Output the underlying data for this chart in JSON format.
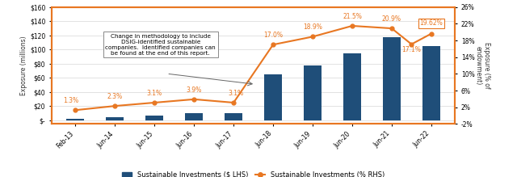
{
  "bar_categories": [
    "Feb-13",
    "Jun-14",
    "Jun-15",
    "Jun-16",
    "Jun-17",
    "Jun-18",
    "Jun-19",
    "Jun-20",
    "Jun-21",
    "Jun-22"
  ],
  "bar_x": [
    0,
    1,
    2,
    3,
    4,
    5,
    6,
    7,
    8,
    9
  ],
  "bar_values": [
    2,
    4,
    7,
    10,
    10,
    65,
    78,
    95,
    118,
    105
  ],
  "bar_color": "#1F4E79",
  "bar_width": 0.45,
  "line_x": [
    0,
    1,
    2,
    3,
    4,
    5,
    6,
    7,
    8,
    8.5,
    9
  ],
  "line_values": [
    1.3,
    2.3,
    3.1,
    3.9,
    3.1,
    17.0,
    18.9,
    21.5,
    20.9,
    17.1,
    19.62
  ],
  "line_color": "#E87722",
  "line_labels": [
    "1.3%",
    "2.3%",
    "3.1%",
    "3.9%",
    "3.1%",
    "17.0%",
    "18.9%",
    "21.5%",
    "20.9%",
    "17.1%",
    "19.62%"
  ],
  "ylim_left": [
    -5,
    160
  ],
  "ylim_right": [
    -2,
    26
  ],
  "yticks_left": [
    0,
    20,
    40,
    60,
    80,
    100,
    120,
    140,
    160
  ],
  "ytick_labels_left": [
    "$-",
    "$20",
    "$40",
    "$60",
    "$80",
    "$100",
    "$120",
    "$140",
    "$160"
  ],
  "yticks_right": [
    -2,
    2,
    6,
    10,
    14,
    18,
    22,
    26
  ],
  "ytick_labels_right": [
    "-2%",
    "2%",
    "6%",
    "10%",
    "14%",
    "18%",
    "22%",
    "26%"
  ],
  "ylabel_left": "Exposure (millions)",
  "ylabel_right": "Exposure (% of\nendowment)",
  "annotation_text": "Change in methodology to include\nDSIG-identified sustainable\ncompanies.  Identified companies can\nbe found at the end of this report.",
  "background_color": "#FFFFFF",
  "border_color": "#E87722",
  "legend_bar_label": "Sustainable Investments ($ LHS)",
  "legend_line_label": "Sustainable Investments (% RHS)",
  "figsize": [
    6.4,
    2.19
  ],
  "dpi": 100
}
